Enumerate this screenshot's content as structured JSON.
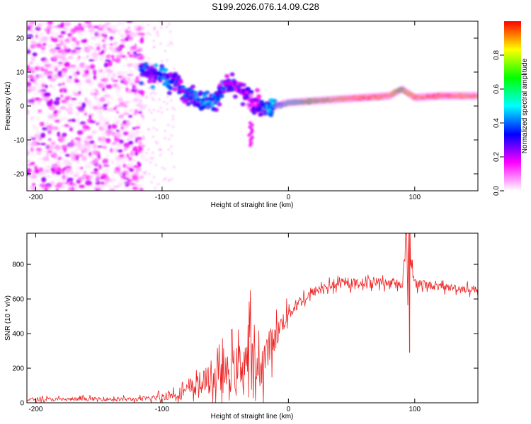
{
  "figure_title": "S199.2026.076.14.09.C28",
  "chart_data": [
    {
      "type": "heatmap",
      "title": "S199.2026.076.14.09.C28",
      "xlabel": "Height of straight line (km)",
      "ylabel": "Frequency (Hz)",
      "xlim": [
        -207,
        150
      ],
      "ylim": [
        -25,
        25
      ],
      "xticks": [
        -200,
        -100,
        0,
        100
      ],
      "yticks": [
        -20,
        -10,
        0,
        10,
        20
      ],
      "colorbar": {
        "label": "Normalized spectral amplitude",
        "range": [
          0,
          1
        ],
        "ticks": [
          0.0,
          0.2,
          0.4,
          0.6,
          0.8
        ],
        "colormap": [
          "#ffffff",
          "#ff00ff",
          "#0000ff",
          "#00ffff",
          "#00ff00",
          "#ffff00",
          "#ff0000"
        ]
      },
      "signal_track": {
        "x": [
          -115,
          -100,
          -90,
          -80,
          -70,
          -60,
          -50,
          -40,
          -30,
          -20,
          -10,
          0,
          20,
          40,
          60,
          80,
          90,
          100,
          120,
          150
        ],
        "freq_hz": [
          10,
          9,
          7,
          4,
          2,
          1,
          6,
          5,
          2,
          -1,
          0,
          1,
          1.5,
          2,
          2.5,
          3,
          5,
          2.5,
          3,
          3
        ],
        "amplitude": [
          0.3,
          0.35,
          0.3,
          0.3,
          0.35,
          0.35,
          0.3,
          0.25,
          0.2,
          0.3,
          0.45,
          0.55,
          0.7,
          0.8,
          0.9,
          0.85,
          0.7,
          0.85,
          0.9,
          0.85
        ]
      },
      "tail_feature": {
        "x": -30,
        "freq_hz": [
          -5,
          -12
        ],
        "amplitude": 0.15
      }
    },
    {
      "type": "line",
      "xlabel": "Height of straight line (km)",
      "ylabel": "SNR (10 * v/v)",
      "xlim": [
        -207,
        150
      ],
      "ylim": [
        0,
        980
      ],
      "xticks": [
        -200,
        -100,
        0,
        100
      ],
      "yticks": [
        0,
        200,
        400,
        600,
        800
      ],
      "series": [
        {
          "name": "SNR",
          "color": "#ee2222",
          "x": [
            -207,
            -180,
            -150,
            -120,
            -110,
            -100,
            -90,
            -80,
            -70,
            -60,
            -50,
            -40,
            -35,
            -30,
            -25,
            -20,
            -15,
            -10,
            -5,
            0,
            10,
            20,
            30,
            40,
            50,
            60,
            70,
            80,
            90,
            95,
            100,
            110,
            120,
            130,
            140,
            150
          ],
          "y": [
            20,
            20,
            22,
            20,
            25,
            35,
            50,
            70,
            110,
            140,
            160,
            200,
            250,
            260,
            160,
            240,
            330,
            380,
            460,
            520,
            590,
            640,
            670,
            685,
            690,
            695,
            700,
            690,
            690,
            980,
            690,
            680,
            670,
            665,
            660,
            655
          ],
          "noise": [
            15,
            15,
            15,
            15,
            20,
            30,
            40,
            60,
            90,
            120,
            150,
            190,
            230,
            260,
            160,
            170,
            140,
            110,
            90,
            70,
            50,
            40,
            35,
            35,
            35,
            35,
            35,
            35,
            40,
            300,
            40,
            35,
            30,
            30,
            30,
            30
          ],
          "spike": {
            "x": 96,
            "y_max": 980,
            "y_min": 290
          }
        }
      ]
    }
  ]
}
